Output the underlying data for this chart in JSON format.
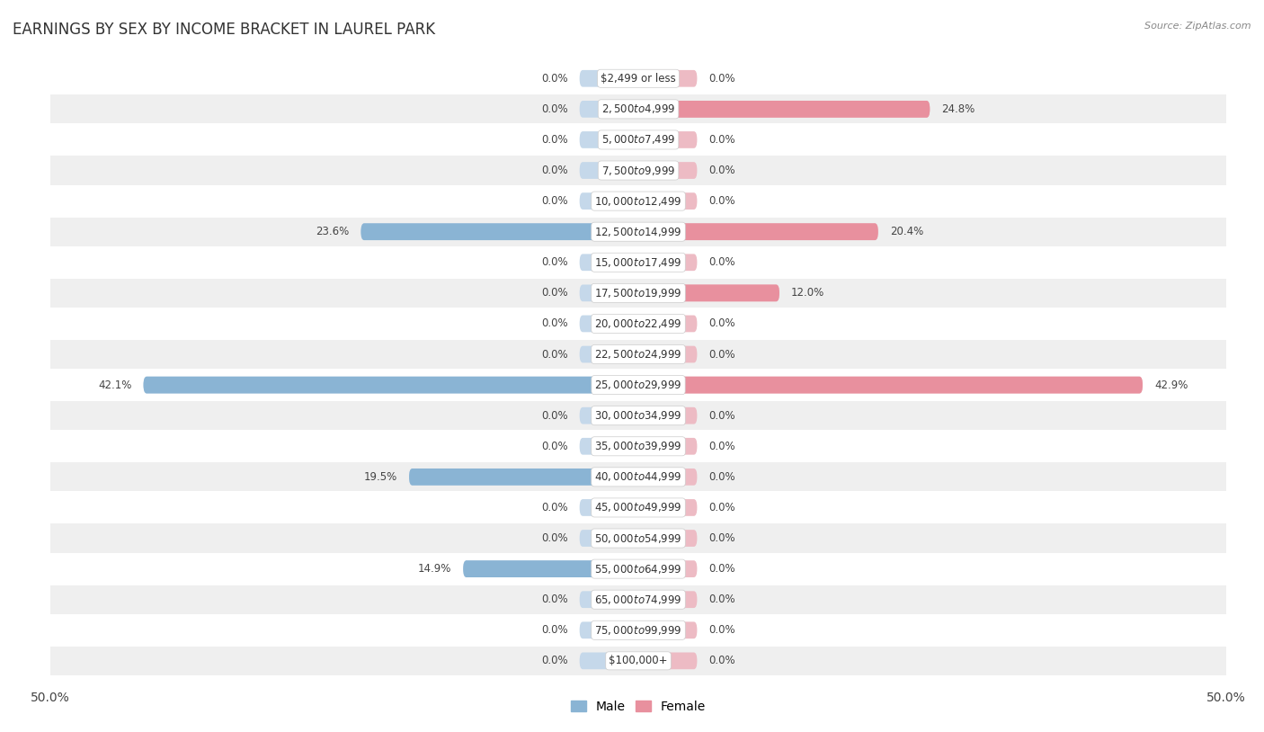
{
  "title": "EARNINGS BY SEX BY INCOME BRACKET IN LAUREL PARK",
  "source": "Source: ZipAtlas.com",
  "categories": [
    "$2,499 or less",
    "$2,500 to $4,999",
    "$5,000 to $7,499",
    "$7,500 to $9,999",
    "$10,000 to $12,499",
    "$12,500 to $14,999",
    "$15,000 to $17,499",
    "$17,500 to $19,999",
    "$20,000 to $22,499",
    "$22,500 to $24,999",
    "$25,000 to $29,999",
    "$30,000 to $34,999",
    "$35,000 to $39,999",
    "$40,000 to $44,999",
    "$45,000 to $49,999",
    "$50,000 to $54,999",
    "$55,000 to $64,999",
    "$65,000 to $74,999",
    "$75,000 to $99,999",
    "$100,000+"
  ],
  "male_values": [
    0.0,
    0.0,
    0.0,
    0.0,
    0.0,
    23.6,
    0.0,
    0.0,
    0.0,
    0.0,
    42.1,
    0.0,
    0.0,
    19.5,
    0.0,
    0.0,
    14.9,
    0.0,
    0.0,
    0.0
  ],
  "female_values": [
    0.0,
    24.8,
    0.0,
    0.0,
    0.0,
    20.4,
    0.0,
    12.0,
    0.0,
    0.0,
    42.9,
    0.0,
    0.0,
    0.0,
    0.0,
    0.0,
    0.0,
    0.0,
    0.0,
    0.0
  ],
  "male_color": "#8ab4d4",
  "female_color": "#e8909e",
  "bar_background_male": "#c5d8ea",
  "bar_background_female": "#edbbC4",
  "row_color_odd": "#ffffff",
  "row_color_even": "#efefef",
  "xlim": 50.0,
  "legend_male": "Male",
  "legend_female": "Female",
  "bg_color": "#ffffff"
}
